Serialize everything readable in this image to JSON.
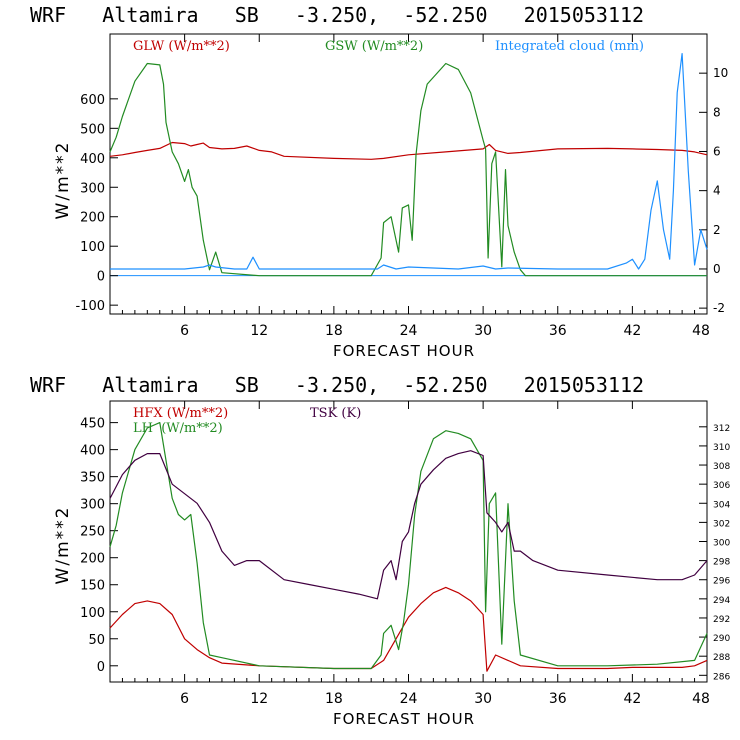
{
  "chart_data": [
    {
      "type": "line",
      "title": "WRF   Altamira   SB   -3.250,  -52.250   2015053112",
      "xlabel": "FORECAST HOUR",
      "ylabel": "W/m**2",
      "xlim": [
        0,
        48
      ],
      "ylim": [
        -130,
        820
      ],
      "y2lim": [
        -2.3,
        12.0
      ],
      "x_ticks": [
        "6",
        "12",
        "18",
        "24",
        "30",
        "36",
        "42",
        "48"
      ],
      "y_ticks": [
        "-100",
        "0",
        "100",
        "200",
        "300",
        "400",
        "500",
        "600"
      ],
      "y2_ticks": [
        "-2",
        "0",
        "2",
        "4",
        "6",
        "8",
        "10"
      ],
      "series": [
        {
          "name": "GLW (W/m**2)",
          "color": "#c00000",
          "axis": "left",
          "x": [
            0,
            1,
            2,
            3,
            4,
            5,
            6,
            6.5,
            7,
            7.5,
            8,
            9,
            10,
            11,
            12,
            13,
            14,
            18,
            21,
            22,
            24,
            27,
            30,
            30.5,
            31,
            32,
            33,
            36,
            40,
            42,
            44,
            46,
            47,
            48
          ],
          "y": [
            405,
            410,
            418,
            425,
            432,
            452,
            448,
            440,
            445,
            450,
            435,
            430,
            432,
            440,
            425,
            420,
            405,
            398,
            395,
            398,
            410,
            420,
            430,
            445,
            425,
            415,
            418,
            430,
            432,
            430,
            428,
            425,
            420,
            410
          ]
        },
        {
          "name": "GSW (W/m**2)",
          "color": "#228b22",
          "axis": "left",
          "x": [
            0,
            0.5,
            1,
            2,
            3,
            4,
            4.3,
            4.5,
            5,
            5.5,
            6,
            6.3,
            6.6,
            7,
            7.5,
            8,
            8.5,
            9,
            12,
            21,
            21.8,
            22,
            22.6,
            23.2,
            23.5,
            24,
            24.3,
            24.6,
            25,
            25.5,
            27,
            28,
            29,
            30,
            30.2,
            30.4,
            30.7,
            31,
            31.5,
            31.8,
            32,
            32.5,
            33,
            33.4,
            36,
            48
          ],
          "y": [
            420,
            470,
            540,
            660,
            720,
            715,
            650,
            520,
            420,
            380,
            320,
            360,
            300,
            270,
            120,
            20,
            80,
            10,
            0,
            0,
            60,
            180,
            200,
            80,
            230,
            240,
            120,
            410,
            560,
            650,
            720,
            700,
            620,
            460,
            430,
            60,
            380,
            420,
            30,
            360,
            170,
            80,
            20,
            0,
            0,
            0
          ]
        },
        {
          "name": "Integrated cloud (mm)",
          "color": "#1e90ff",
          "axis": "right",
          "x": [
            0,
            6,
            7.5,
            8,
            8.5,
            10,
            11,
            11.5,
            12,
            16,
            21.5,
            22,
            23,
            24,
            28,
            30,
            31,
            32,
            36,
            40,
            41.5,
            42,
            42.5,
            43,
            43.5,
            44,
            44.5,
            45,
            45.3,
            45.6,
            46,
            46.5,
            47,
            47.5,
            48
          ],
          "y": [
            0,
            0,
            0.1,
            0.2,
            0.1,
            0,
            0,
            0.6,
            0,
            0,
            0,
            0.2,
            0,
            0.1,
            0,
            0.15,
            0,
            0.05,
            0,
            0,
            0.3,
            0.5,
            0,
            0.5,
            3,
            4.5,
            2,
            0.5,
            4,
            9,
            11,
            5,
            0.2,
            2,
            1
          ]
        }
      ]
    },
    {
      "type": "line",
      "title": "WRF   Altamira   SB   -3.250,  -52.250   2015053112",
      "xlabel": "FORECAST HOUR",
      "ylabel": "W/m**2",
      "xlim": [
        0,
        48
      ],
      "ylim": [
        -30,
        490
      ],
      "y2lim": [
        285.3,
        314.7
      ],
      "x_ticks": [
        "6",
        "12",
        "18",
        "24",
        "30",
        "36",
        "42",
        "48"
      ],
      "y_ticks": [
        "0",
        "50",
        "100",
        "150",
        "200",
        "250",
        "300",
        "350",
        "400",
        "450"
      ],
      "y2_ticks": [
        "286",
        "288",
        "290",
        "292",
        "294",
        "296",
        "298",
        "300",
        "302",
        "304",
        "306",
        "308",
        "310",
        "312"
      ],
      "series": [
        {
          "name": "HFX (W/m**2)",
          "color": "#c00000",
          "axis": "left",
          "x": [
            0,
            1,
            2,
            3,
            4,
            5,
            6,
            7,
            8,
            9,
            12,
            18,
            21,
            22,
            24,
            25,
            26,
            27,
            28,
            29,
            30,
            30.3,
            31,
            32,
            33,
            36,
            40,
            42,
            44,
            46,
            47,
            48
          ],
          "y": [
            70,
            95,
            115,
            120,
            115,
            95,
            50,
            30,
            15,
            5,
            0,
            -5,
            -5,
            10,
            90,
            115,
            135,
            145,
            135,
            120,
            95,
            -10,
            20,
            10,
            0,
            -5,
            -5,
            -3,
            -3,
            -3,
            0,
            10
          ]
        },
        {
          "name": "LH  (W/m**2)",
          "color": "#228b22",
          "axis": "left",
          "x": [
            0,
            0.5,
            1,
            2,
            3,
            4,
            4.5,
            5,
            5.5,
            6,
            6.5,
            7,
            7.5,
            8,
            9,
            12,
            18,
            21,
            21.8,
            22,
            22.6,
            23.2,
            23.6,
            24,
            24.5,
            25,
            26,
            27,
            28,
            29,
            30,
            30.2,
            30.5,
            31,
            31.5,
            32,
            32.5,
            33,
            36,
            40,
            44,
            47,
            48
          ],
          "y": [
            220,
            260,
            320,
            400,
            440,
            450,
            380,
            310,
            280,
            270,
            280,
            190,
            80,
            20,
            15,
            0,
            -5,
            -5,
            20,
            60,
            75,
            30,
            80,
            150,
            280,
            360,
            420,
            435,
            430,
            420,
            380,
            100,
            300,
            320,
            40,
            300,
            120,
            20,
            0,
            0,
            3,
            10,
            60
          ]
        },
        {
          "name": "TSK (K)",
          "color": "#400040",
          "axis": "right",
          "x": [
            0,
            1,
            2,
            3,
            4,
            5,
            6,
            7,
            8,
            9,
            10,
            11,
            12,
            14,
            16,
            18,
            20,
            21.5,
            22,
            22.6,
            23,
            23.5,
            24,
            24.5,
            25,
            26,
            27,
            28,
            29,
            30,
            30.3,
            31,
            31.5,
            32,
            32.5,
            33,
            34,
            36,
            40,
            44,
            46,
            47,
            48
          ],
          "y": [
            304.5,
            307,
            308.5,
            309.2,
            309.2,
            306,
            305,
            304,
            302,
            299,
            297.5,
            298,
            298,
            296,
            295.5,
            295,
            294.5,
            294,
            297,
            298,
            296,
            300,
            301,
            304,
            306,
            307.5,
            308.7,
            309.2,
            309.5,
            309,
            303,
            302,
            301,
            302,
            299,
            299,
            298,
            297,
            296.5,
            296,
            296,
            296.5,
            298
          ]
        }
      ]
    }
  ]
}
